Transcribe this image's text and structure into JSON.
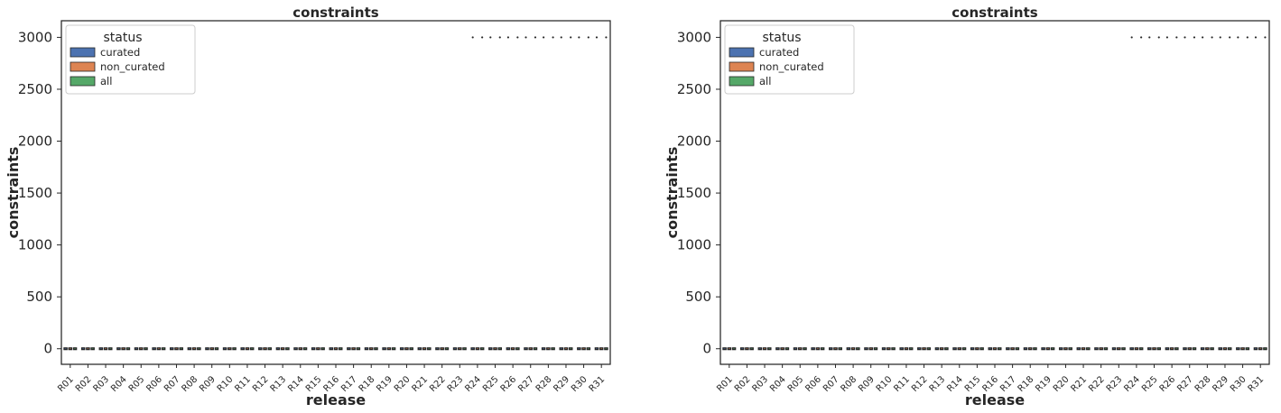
{
  "chart_data": [
    {
      "type": "box",
      "title": "constraints",
      "xlabel": "release",
      "ylabel": "constraints",
      "ylim": [
        -150,
        3160
      ],
      "yticks": [
        0,
        500,
        1000,
        1500,
        2000,
        2500,
        3000
      ],
      "categories": [
        "R01",
        "R02",
        "R03",
        "R04",
        "R05",
        "R06",
        "R07",
        "R08",
        "R09",
        "R10",
        "R11",
        "R12",
        "R13",
        "R14",
        "R15",
        "R16",
        "R17",
        "R18",
        "R19",
        "R20",
        "R21",
        "R22",
        "R23",
        "R24",
        "R25",
        "R26",
        "R27",
        "R28",
        "R29",
        "R30",
        "R31"
      ],
      "series": [
        {
          "name": "curated",
          "values": [
            0,
            0,
            0,
            0,
            0,
            0,
            0,
            0,
            0,
            0,
            0,
            0,
            0,
            0,
            0,
            0,
            0,
            0,
            0,
            0,
            0,
            0,
            0,
            0,
            0,
            0,
            0,
            0,
            0,
            0,
            0
          ],
          "outliers": [
            null,
            null,
            null,
            null,
            null,
            null,
            null,
            null,
            null,
            null,
            null,
            null,
            null,
            null,
            null,
            null,
            null,
            null,
            null,
            null,
            null,
            null,
            null,
            3000,
            3000,
            3000,
            3000,
            3000,
            3000,
            3000,
            3000
          ]
        },
        {
          "name": "non_curated",
          "values": [
            0,
            0,
            0,
            0,
            0,
            0,
            0,
            0,
            0,
            0,
            0,
            0,
            0,
            0,
            0,
            0,
            0,
            0,
            0,
            0,
            0,
            0,
            0,
            0,
            0,
            0,
            0,
            0,
            0,
            0,
            0
          ],
          "outliers": [
            null,
            null,
            null,
            null,
            null,
            null,
            null,
            null,
            null,
            null,
            null,
            null,
            null,
            null,
            null,
            null,
            null,
            null,
            null,
            null,
            null,
            null,
            null,
            null,
            null,
            null,
            null,
            null,
            null,
            null,
            null
          ]
        },
        {
          "name": "all",
          "values": [
            0,
            0,
            0,
            0,
            0,
            0,
            0,
            0,
            0,
            0,
            0,
            0,
            0,
            0,
            0,
            0,
            0,
            0,
            0,
            0,
            0,
            0,
            0,
            0,
            0,
            0,
            0,
            0,
            0,
            0,
            0
          ],
          "outliers": [
            null,
            null,
            null,
            null,
            null,
            null,
            null,
            null,
            null,
            null,
            null,
            null,
            null,
            null,
            null,
            null,
            null,
            null,
            null,
            null,
            null,
            null,
            null,
            3000,
            3000,
            3000,
            3000,
            3000,
            3000,
            3000,
            3000
          ]
        }
      ],
      "legend": {
        "title": "status",
        "position": "top-left"
      },
      "grid": false
    },
    {
      "type": "box",
      "title": "constraints",
      "xlabel": "release",
      "ylabel": "constraints",
      "ylim": [
        -150,
        3160
      ],
      "yticks": [
        0,
        500,
        1000,
        1500,
        2000,
        2500,
        3000
      ],
      "categories": [
        "R01",
        "R02",
        "R03",
        "R04",
        "R05",
        "R06",
        "R07",
        "R08",
        "R09",
        "R10",
        "R11",
        "R12",
        "R13",
        "R14",
        "R15",
        "R16",
        "R17",
        "R18",
        "R19",
        "R20",
        "R21",
        "R22",
        "R23",
        "R24",
        "R25",
        "R26",
        "R27",
        "R28",
        "R29",
        "R30",
        "R31"
      ],
      "series": [
        {
          "name": "curated",
          "values": [
            0,
            0,
            0,
            0,
            0,
            0,
            0,
            0,
            0,
            0,
            0,
            0,
            0,
            0,
            0,
            0,
            0,
            0,
            0,
            0,
            0,
            0,
            0,
            0,
            0,
            0,
            0,
            0,
            0,
            0,
            0
          ],
          "outliers": [
            null,
            null,
            null,
            null,
            null,
            null,
            null,
            null,
            null,
            null,
            null,
            null,
            null,
            null,
            null,
            null,
            null,
            null,
            null,
            null,
            null,
            null,
            null,
            3000,
            3000,
            3000,
            3000,
            3000,
            3000,
            3000,
            3000
          ]
        },
        {
          "name": "non_curated",
          "values": [
            0,
            0,
            0,
            0,
            0,
            0,
            0,
            0,
            0,
            0,
            0,
            0,
            0,
            0,
            0,
            0,
            0,
            0,
            0,
            0,
            0,
            0,
            0,
            0,
            0,
            0,
            0,
            0,
            0,
            0,
            0
          ],
          "outliers": [
            null,
            null,
            null,
            null,
            null,
            null,
            null,
            null,
            null,
            null,
            null,
            null,
            null,
            null,
            null,
            null,
            null,
            null,
            null,
            null,
            null,
            null,
            null,
            null,
            null,
            null,
            null,
            null,
            null,
            null,
            null
          ]
        },
        {
          "name": "all",
          "values": [
            0,
            0,
            0,
            0,
            0,
            0,
            0,
            0,
            0,
            0,
            0,
            0,
            0,
            0,
            0,
            0,
            0,
            0,
            0,
            0,
            0,
            0,
            0,
            0,
            0,
            0,
            0,
            0,
            0,
            0,
            0
          ],
          "outliers": [
            null,
            null,
            null,
            null,
            null,
            null,
            null,
            null,
            null,
            null,
            null,
            null,
            null,
            null,
            null,
            null,
            null,
            null,
            null,
            null,
            null,
            null,
            null,
            3000,
            3000,
            3000,
            3000,
            3000,
            3000,
            3000,
            3000
          ]
        }
      ],
      "legend": {
        "title": "status",
        "position": "top-left"
      },
      "grid": false
    }
  ],
  "colors": {
    "curated": "#4c72b0",
    "non_curated": "#dd8452",
    "all": "#55a868",
    "axis": "#262626",
    "text": "#262626"
  }
}
